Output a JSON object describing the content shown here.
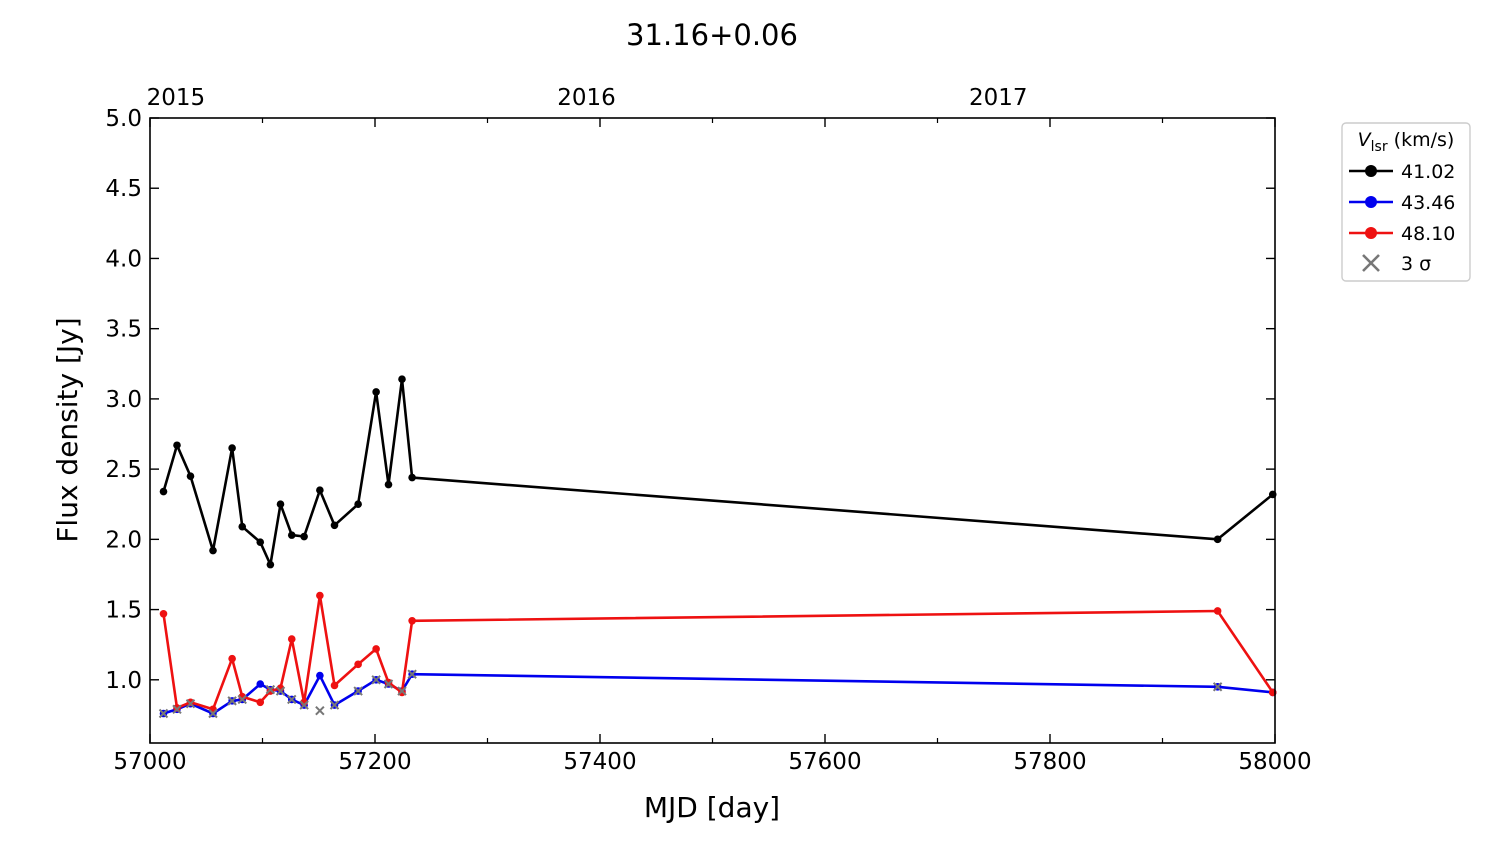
{
  "chart_data": {
    "type": "line",
    "title": "31.16+0.06",
    "xlabel": "MJD [day]",
    "ylabel": "Flux density [Jy]",
    "xlim": [
      57000,
      58000
    ],
    "ylim": [
      0.55,
      5.0
    ],
    "x_ticks": [
      57000,
      57200,
      57400,
      57600,
      57800,
      58000
    ],
    "x_minor_ticks": [
      57100,
      57300,
      57500,
      57700,
      57900
    ],
    "y_ticks": [
      1.0,
      1.5,
      2.0,
      2.5,
      3.0,
      3.5,
      4.0,
      4.5,
      5.0
    ],
    "y_tick_labels": [
      "1.0",
      "1.5",
      "2.0",
      "2.5",
      "3.0",
      "3.5",
      "4.0",
      "4.5",
      "5.0"
    ],
    "top_axis": {
      "ticks": [
        {
          "x": 57023,
          "label": "2015"
        },
        {
          "x": 57388,
          "label": "2016"
        },
        {
          "x": 57754,
          "label": "2017"
        }
      ]
    },
    "grid": false,
    "legend": {
      "placement": "outside-right",
      "title_main": "V",
      "title_sub": "lsr",
      "title_unit": " (km/s)",
      "sigma_label": "3 σ"
    },
    "series": [
      {
        "name": "41.02",
        "color": "#000000",
        "x": [
          57012,
          57024,
          57036,
          57056,
          57073,
          57082,
          57098,
          57107,
          57116,
          57126,
          57137,
          57151,
          57164,
          57185,
          57201,
          57212,
          57224,
          57233,
          57949,
          57998
        ],
        "y": [
          2.34,
          2.67,
          2.45,
          1.92,
          2.65,
          2.09,
          1.98,
          1.82,
          2.25,
          2.03,
          2.02,
          2.35,
          2.1,
          2.25,
          3.05,
          2.39,
          3.14,
          2.44,
          2.0,
          2.32
        ]
      },
      {
        "name": "43.46",
        "color": "#0000ee",
        "x": [
          57012,
          57024,
          57036,
          57056,
          57073,
          57082,
          57098,
          57107,
          57116,
          57126,
          57137,
          57151,
          57164,
          57185,
          57201,
          57212,
          57224,
          57233,
          57949,
          57998
        ],
        "y": [
          0.76,
          0.79,
          0.83,
          0.76,
          0.85,
          0.86,
          0.97,
          0.93,
          0.92,
          0.86,
          0.82,
          1.03,
          0.82,
          0.92,
          1.0,
          0.97,
          0.92,
          1.04,
          0.95,
          0.91
        ]
      },
      {
        "name": "48.10",
        "color": "#ee1111",
        "x": [
          57012,
          57024,
          57036,
          57056,
          57073,
          57082,
          57098,
          57107,
          57116,
          57126,
          57137,
          57151,
          57164,
          57185,
          57201,
          57212,
          57224,
          57233,
          57949,
          57998
        ],
        "y": [
          1.47,
          0.8,
          0.84,
          0.79,
          1.15,
          0.88,
          0.84,
          0.92,
          0.94,
          1.29,
          0.84,
          1.6,
          0.96,
          1.11,
          1.22,
          0.98,
          0.91,
          1.42,
          1.49,
          0.91
        ]
      }
    ],
    "sigma_points": {
      "color": "#777777",
      "points": [
        [
          57012,
          0.76
        ],
        [
          57024,
          0.79
        ],
        [
          57036,
          0.83
        ],
        [
          57056,
          0.76
        ],
        [
          57073,
          0.85
        ],
        [
          57082,
          0.86
        ],
        [
          57107,
          0.93
        ],
        [
          57116,
          0.92
        ],
        [
          57126,
          0.86
        ],
        [
          57137,
          0.82
        ],
        [
          57151,
          0.78
        ],
        [
          57164,
          0.82
        ],
        [
          57185,
          0.92
        ],
        [
          57201,
          1.0
        ],
        [
          57212,
          0.97
        ],
        [
          57224,
          0.92
        ],
        [
          57233,
          1.04
        ],
        [
          57949,
          0.95
        ]
      ]
    }
  }
}
